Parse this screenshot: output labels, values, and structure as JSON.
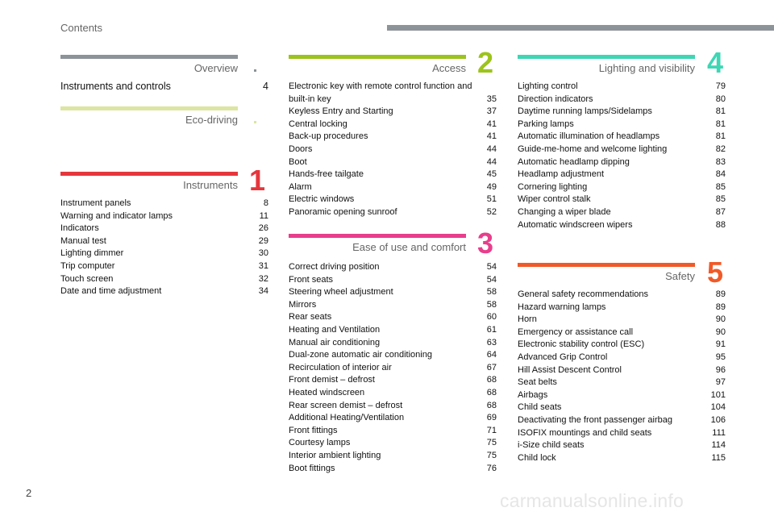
{
  "header": {
    "label": "Contents",
    "bar_color": "#8c9399"
  },
  "page_number": "2",
  "watermark": "carmanualsonline.info",
  "sections": {
    "overview": {
      "title": "Overview",
      "color": "#8c9399",
      "items": [
        {
          "title": "Instruments and controls",
          "page": "4"
        }
      ]
    },
    "eco": {
      "title": "Eco-driving",
      "color": "#dde5a2",
      "items": []
    },
    "instruments": {
      "title": "Instruments",
      "number": "1",
      "color": "#e6363d",
      "items": [
        {
          "title": "Instrument panels",
          "page": "8"
        },
        {
          "title": "Warning and indicator lamps",
          "page": "11"
        },
        {
          "title": "Indicators",
          "page": "26"
        },
        {
          "title": "Manual test",
          "page": "29"
        },
        {
          "title": "Lighting dimmer",
          "page": "30"
        },
        {
          "title": "Trip computer",
          "page": "31"
        },
        {
          "title": "Touch screen",
          "page": "32"
        },
        {
          "title": "Date and time adjustment",
          "page": "34"
        }
      ]
    },
    "access": {
      "title": "Access",
      "number": "2",
      "color": "#9cc31c",
      "items": [
        {
          "title": "Electronic key with remote control function and built-in key",
          "page": "35"
        },
        {
          "title": "Keyless Entry and Starting",
          "page": "37"
        },
        {
          "title": "Central locking",
          "page": "41"
        },
        {
          "title": "Back-up procedures",
          "page": "41"
        },
        {
          "title": "Doors",
          "page": "44"
        },
        {
          "title": "Boot",
          "page": "44"
        },
        {
          "title": "Hands-free tailgate",
          "page": "45"
        },
        {
          "title": "Alarm",
          "page": "49"
        },
        {
          "title": "Electric windows",
          "page": "51"
        },
        {
          "title": "Panoramic opening sunroof",
          "page": "52"
        }
      ]
    },
    "ease": {
      "title": "Ease of use and comfort",
      "number": "3",
      "color": "#e83e8c",
      "items": [
        {
          "title": "Correct driving position",
          "page": "54"
        },
        {
          "title": "Front seats",
          "page": "54"
        },
        {
          "title": "Steering wheel adjustment",
          "page": "58"
        },
        {
          "title": "Mirrors",
          "page": "58"
        },
        {
          "title": "Rear seats",
          "page": "60"
        },
        {
          "title": "Heating and Ventilation",
          "page": "61"
        },
        {
          "title": "Manual air conditioning",
          "page": "63"
        },
        {
          "title": "Dual-zone automatic air conditioning",
          "page": "64"
        },
        {
          "title": "Recirculation of interior air",
          "page": "67"
        },
        {
          "title": "Front demist – defrost",
          "page": "68"
        },
        {
          "title": "Heated windscreen",
          "page": "68"
        },
        {
          "title": "Rear screen demist – defrost",
          "page": "68"
        },
        {
          "title": "Additional Heating/Ventilation",
          "page": "69"
        },
        {
          "title": "Front fittings",
          "page": "71"
        },
        {
          "title": "Courtesy lamps",
          "page": "75"
        },
        {
          "title": "Interior ambient lighting",
          "page": "75"
        },
        {
          "title": "Boot fittings",
          "page": "76"
        }
      ]
    },
    "lighting": {
      "title": "Lighting and visibility",
      "number": "4",
      "color": "#3fd6b4",
      "items": [
        {
          "title": "Lighting control",
          "page": "79"
        },
        {
          "title": "Direction indicators",
          "page": "80"
        },
        {
          "title": "Daytime running lamps/Sidelamps",
          "page": "81"
        },
        {
          "title": "Parking lamps",
          "page": "81"
        },
        {
          "title": "Automatic illumination of headlamps",
          "page": "81"
        },
        {
          "title": "Guide-me-home and welcome lighting",
          "page": "82"
        },
        {
          "title": "Automatic headlamp dipping",
          "page": "83"
        },
        {
          "title": "Headlamp adjustment",
          "page": "84"
        },
        {
          "title": "Cornering lighting",
          "page": "85"
        },
        {
          "title": "Wiper control stalk",
          "page": "85"
        },
        {
          "title": "Changing a wiper blade",
          "page": "87"
        },
        {
          "title": "Automatic windscreen wipers",
          "page": "88"
        }
      ]
    },
    "safety": {
      "title": "Safety",
      "number": "5",
      "color": "#f05a28",
      "items": [
        {
          "title": "General safety recommendations",
          "page": "89"
        },
        {
          "title": "Hazard warning lamps",
          "page": "89"
        },
        {
          "title": "Horn",
          "page": "90"
        },
        {
          "title": "Emergency or assistance call",
          "page": "90"
        },
        {
          "title": "Electronic stability control (ESC)",
          "page": "91"
        },
        {
          "title": "Advanced Grip Control",
          "page": "95"
        },
        {
          "title": "Hill Assist Descent Control",
          "page": "96"
        },
        {
          "title": "Seat belts",
          "page": "97"
        },
        {
          "title": "Airbags",
          "page": "101"
        },
        {
          "title": "Child seats",
          "page": "104"
        },
        {
          "title": "Deactivating the front passenger airbag",
          "page": "106"
        },
        {
          "title": "ISOFIX mountings and child seats",
          "page": "111"
        },
        {
          "title": "i-Size child seats",
          "page": "114"
        },
        {
          "title": "Child lock",
          "page": "115"
        }
      ]
    }
  }
}
